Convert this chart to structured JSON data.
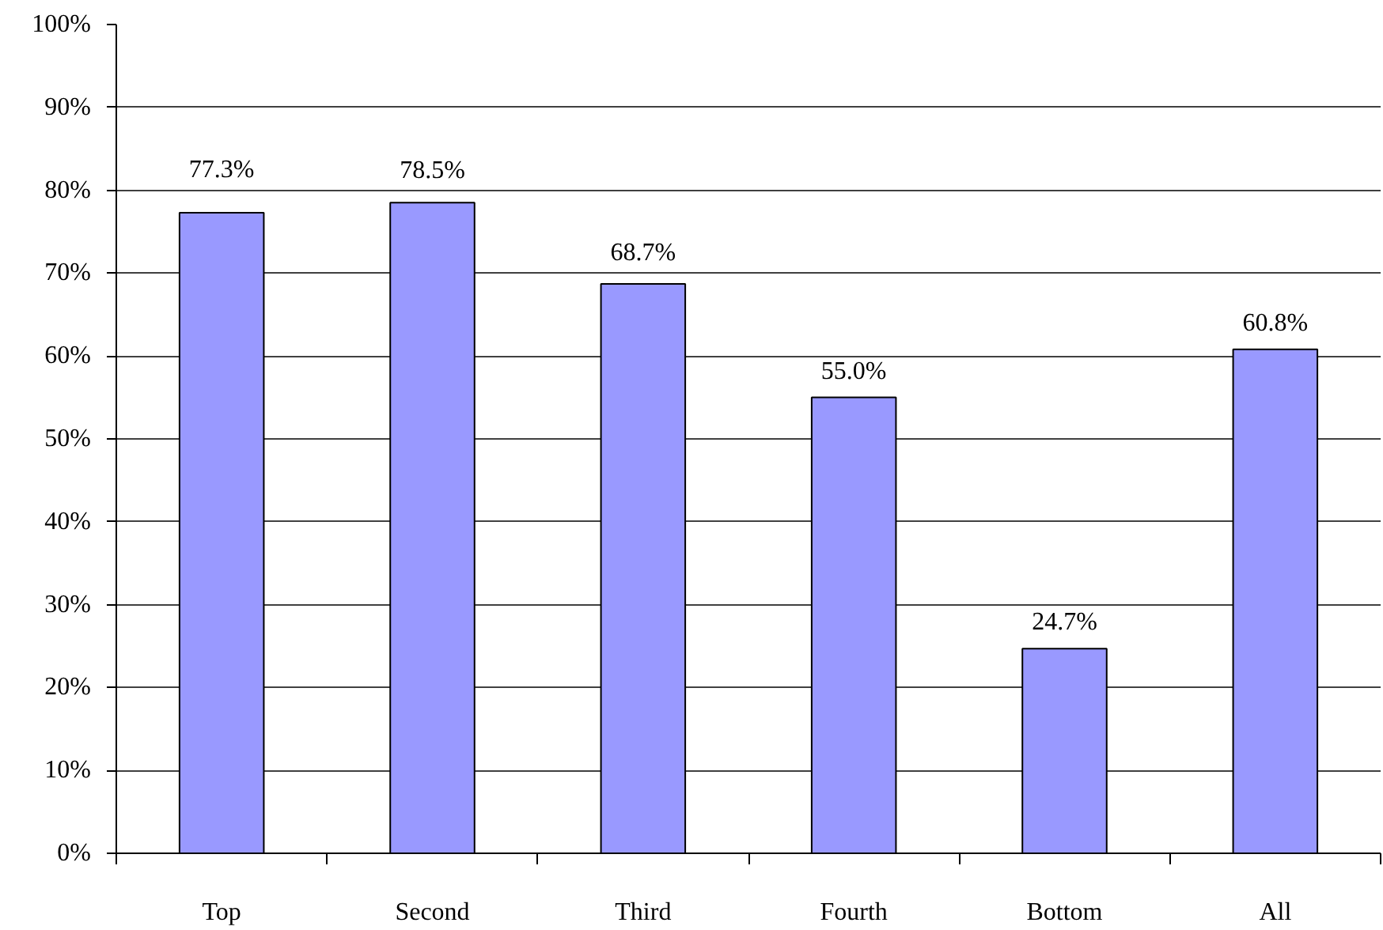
{
  "chart_data": {
    "type": "bar",
    "categories": [
      "Top",
      "Second",
      "Third",
      "Fourth",
      "Bottom",
      "All"
    ],
    "values": [
      77.3,
      78.5,
      68.7,
      55.0,
      24.7,
      60.8
    ],
    "value_labels": [
      "77.3%",
      "78.5%",
      "68.7%",
      "55.0%",
      "24.7%",
      "60.8%"
    ],
    "color": "#9999ff",
    "ylim": [
      0,
      100
    ],
    "yticks": [
      {
        "value": 0,
        "label": "0%"
      },
      {
        "value": 10,
        "label": "10%"
      },
      {
        "value": 20,
        "label": "20%"
      },
      {
        "value": 30,
        "label": "30%"
      },
      {
        "value": 40,
        "label": "40%"
      },
      {
        "value": 50,
        "label": "50%"
      },
      {
        "value": 60,
        "label": "60%"
      },
      {
        "value": 70,
        "label": "70%"
      },
      {
        "value": 80,
        "label": "80%"
      },
      {
        "value": 90,
        "label": "90%"
      },
      {
        "value": 100,
        "label": "100%"
      }
    ],
    "grid": "y"
  }
}
